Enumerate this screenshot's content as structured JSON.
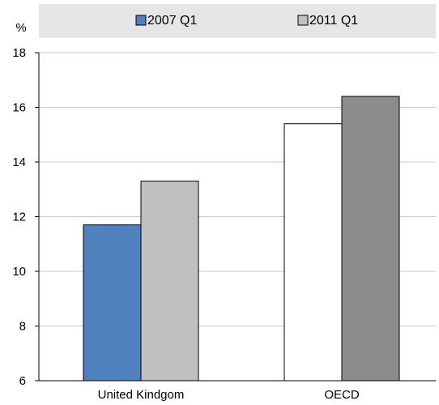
{
  "chart_data": {
    "type": "bar",
    "ylabel": "%",
    "categories": [
      "United Kindgom",
      "OECD"
    ],
    "ylim": [
      6,
      18
    ],
    "yticks": [
      6,
      8,
      10,
      12,
      14,
      16,
      18
    ],
    "grid": true,
    "legend_position": "top",
    "series": [
      {
        "name": "2007 Q1",
        "values": [
          11.7,
          15.4
        ],
        "colors": [
          "#4f81bd",
          "#ffffff"
        ]
      },
      {
        "name": "2011 Q1",
        "values": [
          13.3,
          16.4
        ],
        "colors": [
          "#c0c0c0",
          "#8c8c8c"
        ]
      }
    ]
  },
  "legend": {
    "items": [
      {
        "label": "2007 Q1",
        "swatch": "#4f81bd"
      },
      {
        "label": "2011 Q1",
        "swatch": "#c0c0c0"
      }
    ]
  },
  "colors": {
    "legend_band": "#e6e6e6",
    "gridline": "#c8c8c8",
    "axis": "#000000",
    "bar_outline": "#000000"
  }
}
